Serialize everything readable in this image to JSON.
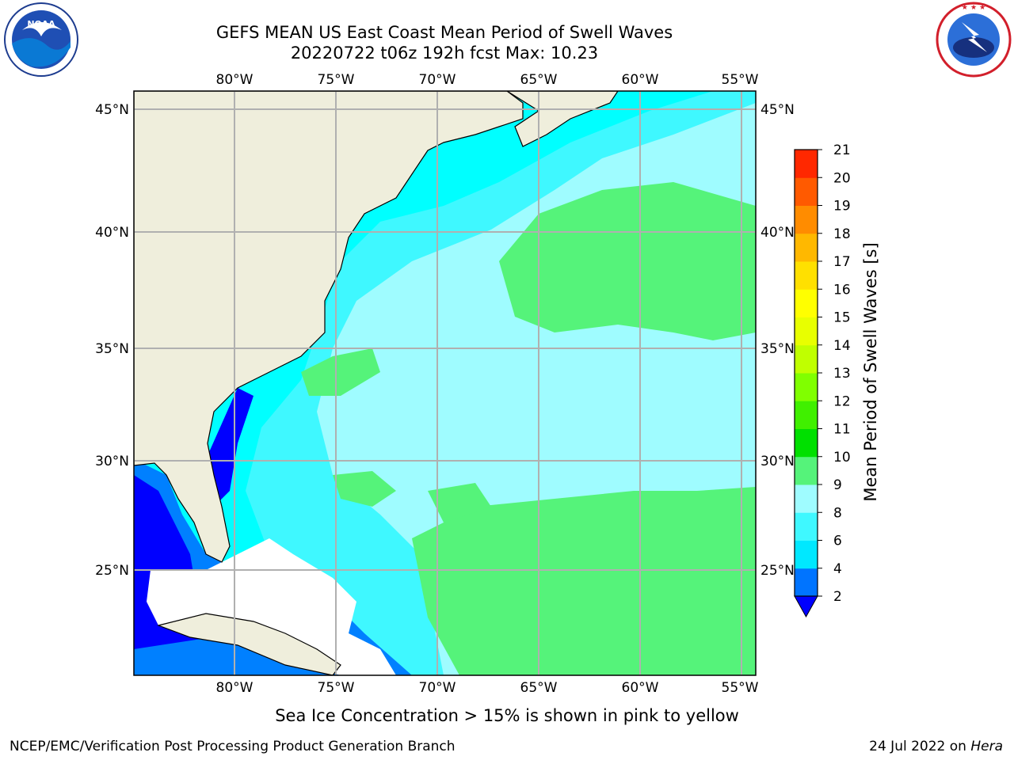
{
  "header": {
    "title_line1": "GEFS MEAN US East Coast Mean Period of Swell Waves",
    "title_line2": "20220722 t06z 192h fcst   Max: 10.23"
  },
  "logos": {
    "left": {
      "name": "noaa-logo",
      "text": "NOAA",
      "ring_text": "NATIONAL OCEANIC AND ATMOSPHERIC ADMINISTRATION · U.S. DEPARTMENT OF COMMERCE"
    },
    "right": {
      "name": "nws-logo",
      "ring_text": "NATIONAL WEATHER SERVICE"
    }
  },
  "map": {
    "lon_ticks": [
      "80°W",
      "75°W",
      "70°W",
      "65°W",
      "60°W",
      "55°W"
    ],
    "lat_ticks": [
      "45°N",
      "40°N",
      "35°N",
      "30°N",
      "25°N"
    ],
    "colors": {
      "land": "#efeedc",
      "ocean_lt4": "#0080ff",
      "ocean_6_8": "#00ffff",
      "ocean_8_9": "#9ffcff",
      "ocean_9_10": "#55f37a",
      "ocean_near_coast": "#3ff0ff",
      "deep_blue": "#0000ff",
      "sea_ice_mask": "#ffffff",
      "grid": "#b0b0b0"
    }
  },
  "colorbar": {
    "label": "Mean Period of Swell Waves [s]",
    "ticks": [
      "2",
      "4",
      "6",
      "8",
      "9",
      "10",
      "11",
      "12",
      "13",
      "14",
      "15",
      "16",
      "17",
      "18",
      "19",
      "20",
      "21"
    ],
    "colors": [
      "#0074ff",
      "#00e8ff",
      "#3ff8ff",
      "#9ffcff",
      "#55f37a",
      "#00e000",
      "#40f000",
      "#80ff00",
      "#c0ff00",
      "#e8ff00",
      "#ffff00",
      "#ffe000",
      "#ffb800",
      "#ff8c00",
      "#ff5a00",
      "#ff2800",
      "#ff0000"
    ],
    "under_color": "#0000ff"
  },
  "footer": {
    "note": "Sea Ice Concentration > 15% is shown in pink to yellow",
    "left": "NCEP/EMC/Verification Post Processing Product Generation Branch",
    "right_prefix": "24 Jul 2022 on ",
    "right_host": "Hera"
  }
}
